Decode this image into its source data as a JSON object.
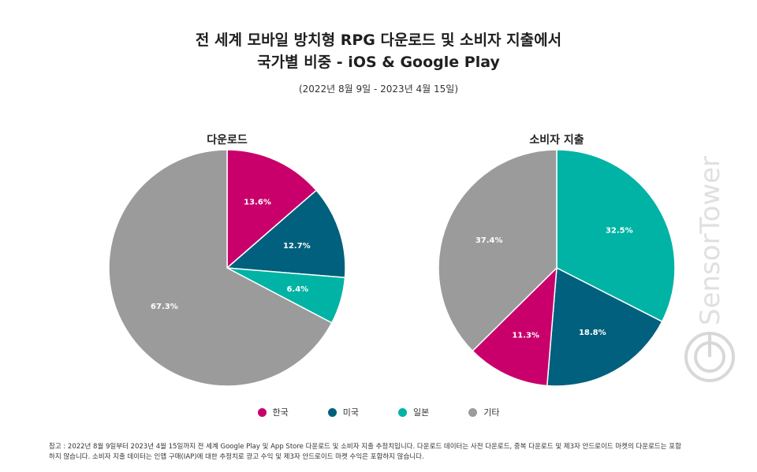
{
  "header": {
    "title_line1": "전 세계 모바일 방치형 RPG 다운로드 및 소비자 지출에서",
    "title_line2": "국가별 비중 - iOS & Google Play",
    "subtitle": "(2022년 8월 9일 - 2023년 4월 15일)"
  },
  "colors": {
    "korea": "#c9006b",
    "usa": "#00607d",
    "japan": "#00b3a4",
    "other": "#9b9b9b"
  },
  "chart_data": [
    {
      "type": "pie",
      "title": "다운로드",
      "categories": [
        "한국",
        "미국",
        "일본",
        "기타"
      ],
      "values": [
        13.6,
        12.7,
        6.4,
        67.3
      ],
      "labels": [
        "13.6%",
        "12.7%",
        "6.4%",
        "67.3%"
      ]
    },
    {
      "type": "pie",
      "title": "소비자 지출",
      "categories": [
        "일본",
        "미국",
        "한국",
        "기타"
      ],
      "values": [
        32.5,
        18.8,
        11.3,
        37.4
      ],
      "labels": [
        "32.5%",
        "18.8%",
        "11.3%",
        "37.4%"
      ]
    }
  ],
  "legend": {
    "items": [
      "한국",
      "미국",
      "일본",
      "기타"
    ],
    "position": "bottom-center"
  },
  "footnote": {
    "line1": "참고 : 2022년 8월 9일부터 2023년 4월 15일까지 전 세계 Google Play 및 App Store 다운로드 및 소비자 지출 추정치입니다. 다운로드 데이터는 사전 다운로드, 중복 다운로드 및 제3자 안드로이드 마켓의 다운로드는 포함",
    "line2": "하지 않습니다. 소비자 지출 데이터는 인앱 구매(IAP)에 대한 추정치로 광고 수익 및 제3자 안드로이드 마켓 수익은 포함하지 않습니다."
  },
  "watermark": {
    "text": "SensorTower"
  }
}
